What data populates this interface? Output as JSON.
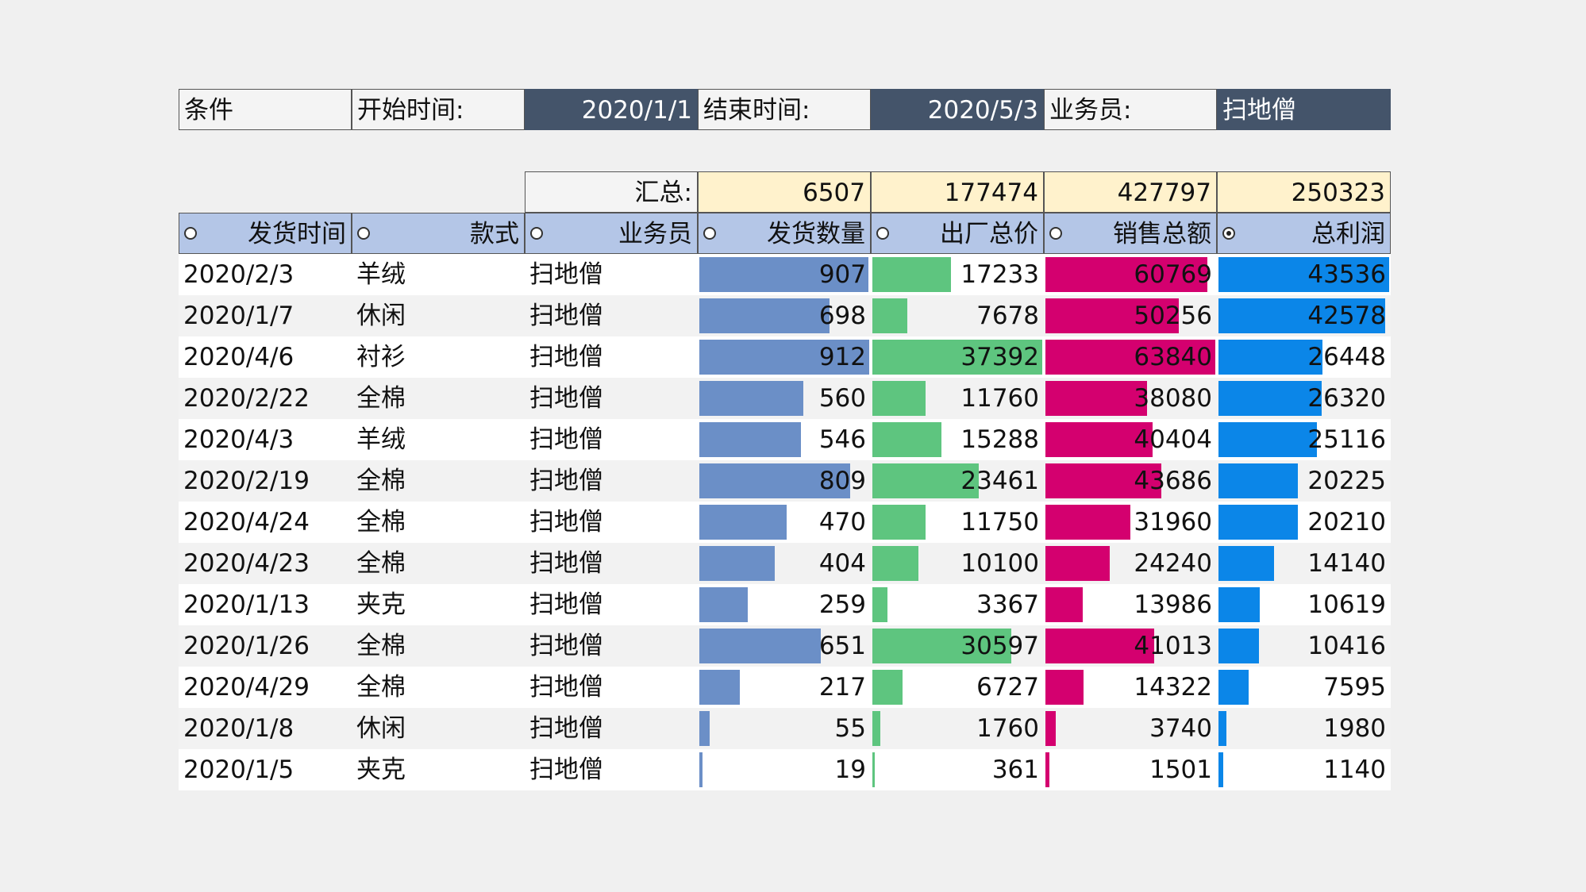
{
  "condition": {
    "label": "条件",
    "start_label": "开始时间:",
    "start_value": "2020/1/1",
    "end_label": "结束时间:",
    "end_value": "2020/5/3",
    "staff_label": "业务员:",
    "staff_value": "扫地僧"
  },
  "summary": {
    "label": "汇总:",
    "qty": "6507",
    "cost": "177474",
    "sales": "427797",
    "profit": "250323"
  },
  "headers": [
    "发货时间",
    "款式",
    "业务员",
    "发货数量",
    "出厂总价",
    "销售总额",
    "总利润"
  ],
  "sort_selected_index": 6,
  "max": {
    "qty": 912,
    "cost": 37392,
    "sales": 63840,
    "profit": 43536
  },
  "rows": [
    {
      "date": "2020/2/3",
      "style": "羊绒",
      "staff": "扫地僧",
      "qty": 907,
      "cost": 17233,
      "sales": 60769,
      "profit": 43536
    },
    {
      "date": "2020/1/7",
      "style": "休闲",
      "staff": "扫地僧",
      "qty": 698,
      "cost": 7678,
      "sales": 50256,
      "profit": 42578
    },
    {
      "date": "2020/4/6",
      "style": "衬衫",
      "staff": "扫地僧",
      "qty": 912,
      "cost": 37392,
      "sales": 63840,
      "profit": 26448
    },
    {
      "date": "2020/2/22",
      "style": "全棉",
      "staff": "扫地僧",
      "qty": 560,
      "cost": 11760,
      "sales": 38080,
      "profit": 26320
    },
    {
      "date": "2020/4/3",
      "style": "羊绒",
      "staff": "扫地僧",
      "qty": 546,
      "cost": 15288,
      "sales": 40404,
      "profit": 25116
    },
    {
      "date": "2020/2/19",
      "style": "全棉",
      "staff": "扫地僧",
      "qty": 809,
      "cost": 23461,
      "sales": 43686,
      "profit": 20225
    },
    {
      "date": "2020/4/24",
      "style": "全棉",
      "staff": "扫地僧",
      "qty": 470,
      "cost": 11750,
      "sales": 31960,
      "profit": 20210
    },
    {
      "date": "2020/4/23",
      "style": "全棉",
      "staff": "扫地僧",
      "qty": 404,
      "cost": 10100,
      "sales": 24240,
      "profit": 14140
    },
    {
      "date": "2020/1/13",
      "style": "夹克",
      "staff": "扫地僧",
      "qty": 259,
      "cost": 3367,
      "sales": 13986,
      "profit": 10619
    },
    {
      "date": "2020/1/26",
      "style": "全棉",
      "staff": "扫地僧",
      "qty": 651,
      "cost": 30597,
      "sales": 41013,
      "profit": 10416
    },
    {
      "date": "2020/4/29",
      "style": "全棉",
      "staff": "扫地僧",
      "qty": 217,
      "cost": 6727,
      "sales": 14322,
      "profit": 7595
    },
    {
      "date": "2020/1/8",
      "style": "休闲",
      "staff": "扫地僧",
      "qty": 55,
      "cost": 1760,
      "sales": 3740,
      "profit": 1980
    },
    {
      "date": "2020/1/5",
      "style": "夹克",
      "staff": "扫地僧",
      "qty": 19,
      "cost": 361,
      "sales": 1501,
      "profit": 1140
    }
  ],
  "colors": {
    "header_bg": "#b4c6e7",
    "summary_bg": "#fff2cc",
    "condition_value_bg": "#44546a",
    "bar_qty": "#6b8fc7",
    "bar_cost": "#5ec57f",
    "bar_sales": "#d4006f",
    "bar_profit": "#0b86e8"
  }
}
